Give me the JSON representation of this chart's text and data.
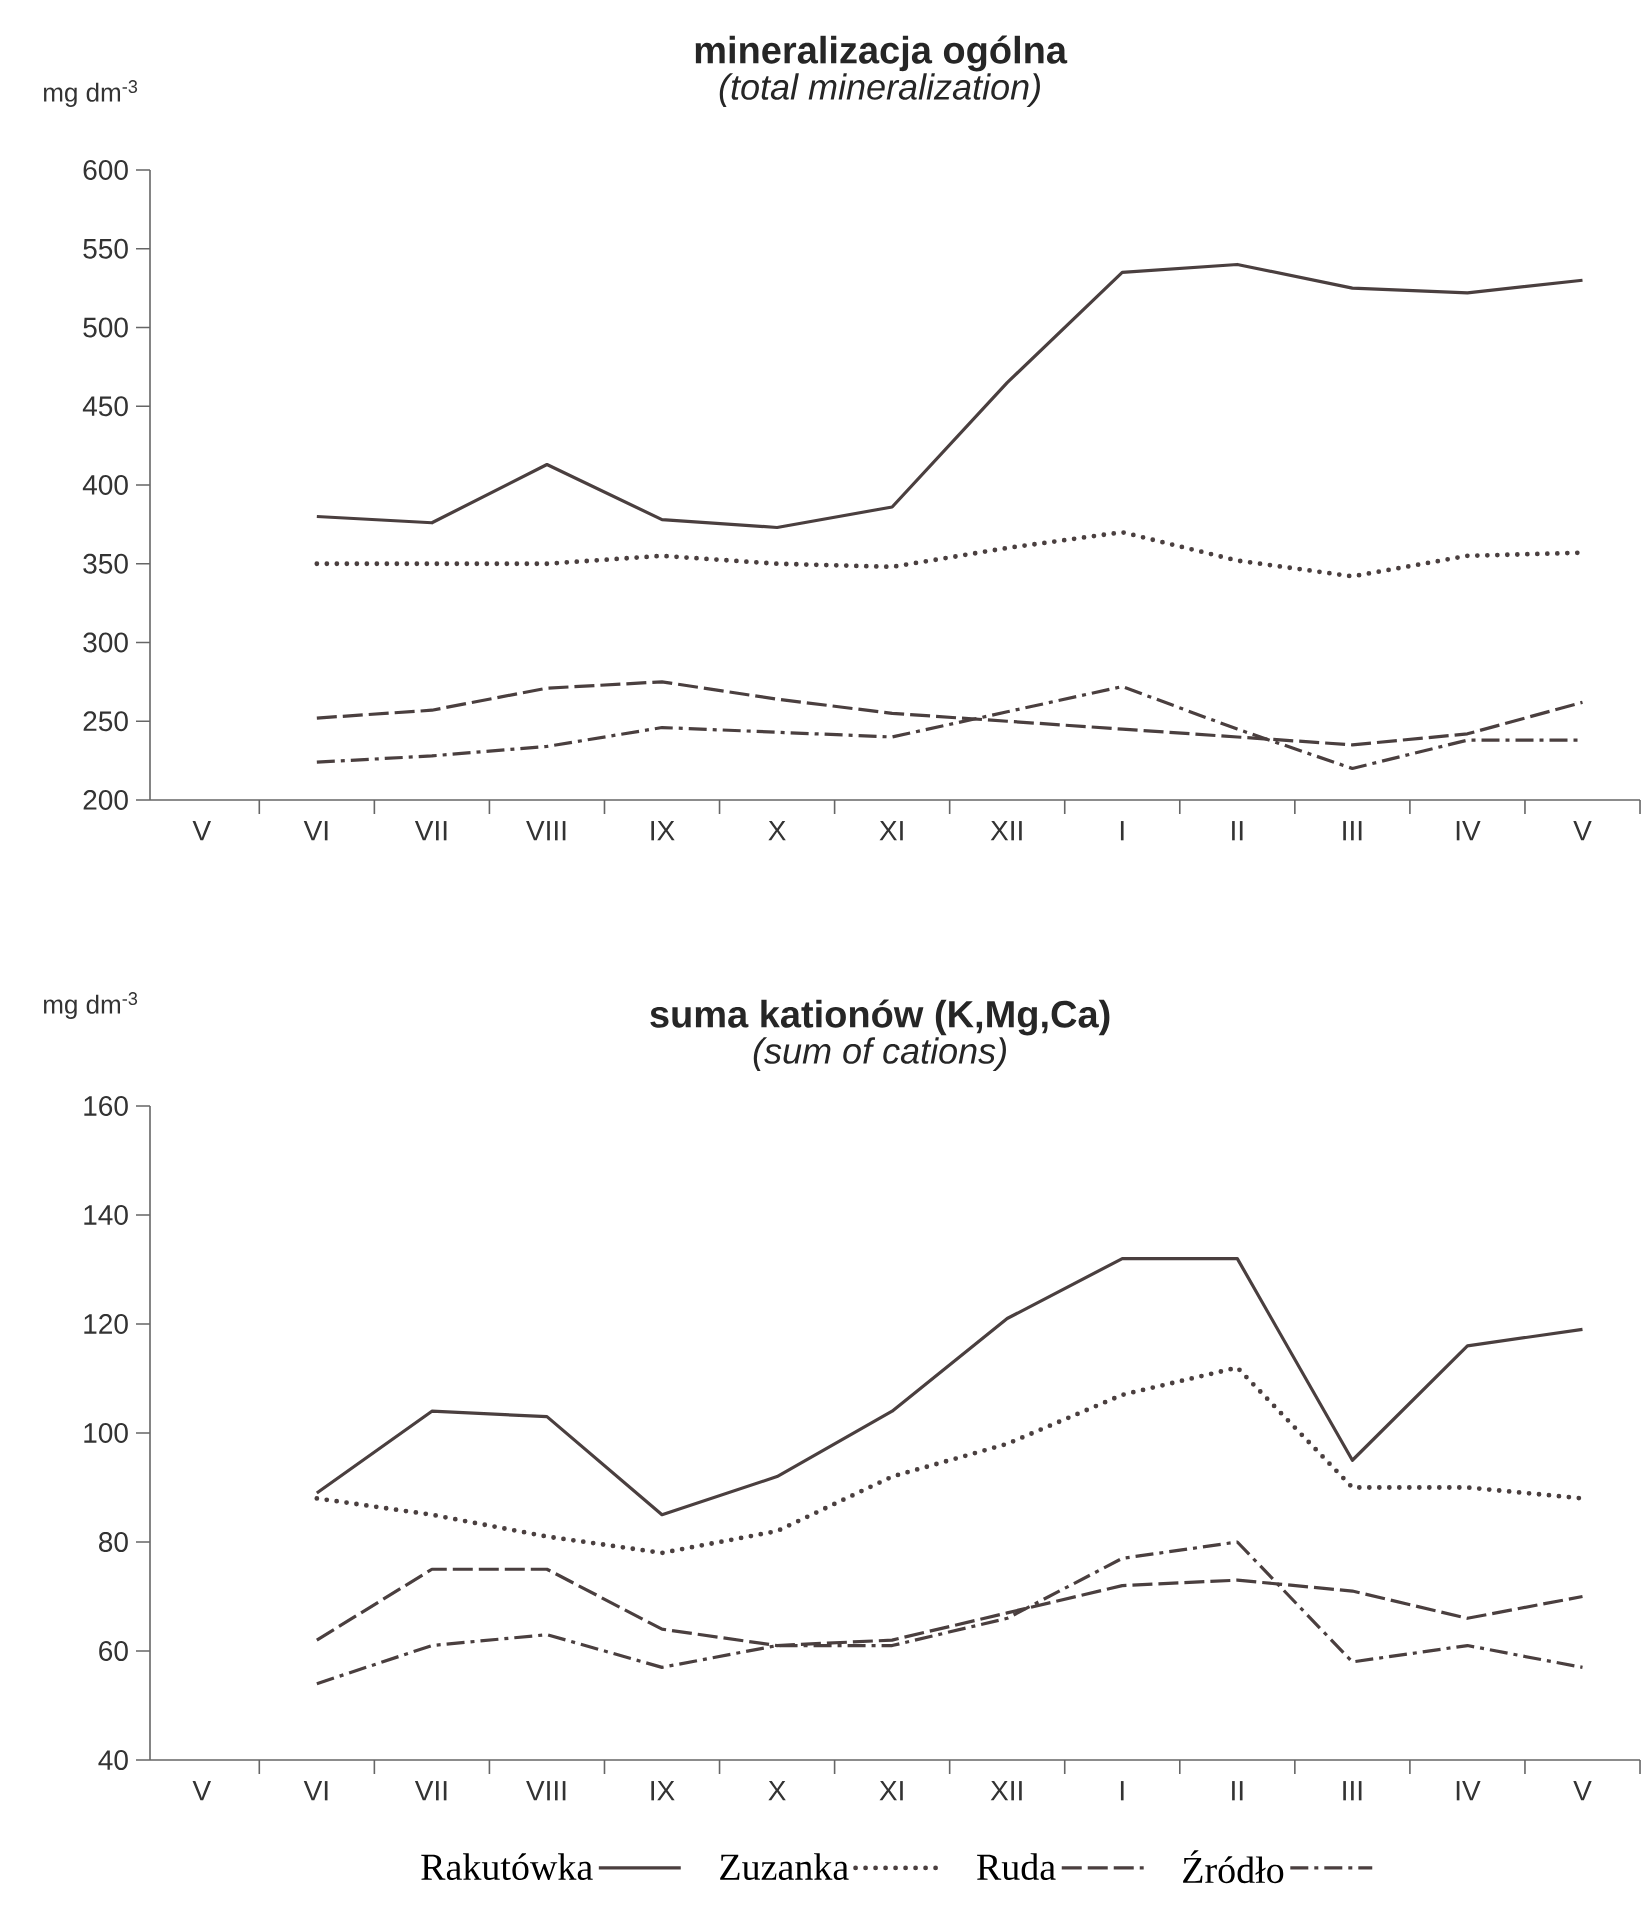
{
  "chart_data": [
    {
      "type": "line",
      "title": "mineralizacja ogólna",
      "subtitle": "(total mineralization)",
      "ylabel": "mg dm$^{-3}$",
      "categories": [
        "V",
        "VI",
        "VII",
        "VIII",
        "IX",
        "X",
        "XI",
        "XII",
        "I",
        "II",
        "III",
        "IV",
        "V"
      ],
      "ylim": [
        200,
        600
      ],
      "yticks": [
        200,
        250,
        300,
        350,
        400,
        450,
        500,
        550,
        600
      ],
      "series": [
        {
          "color": "#4a3f3f",
          "line_style": "solid",
          "values": [
            null,
            380,
            376,
            413,
            378,
            373,
            386,
            465,
            535,
            540,
            525,
            522,
            530
          ]
        },
        {
          "color": "#4a3f3f",
          "line_style": "dotted",
          "values": [
            null,
            350,
            350,
            350,
            355,
            350,
            348,
            360,
            370,
            352,
            342,
            355,
            357
          ]
        },
        {
          "color": "#4a3f3f",
          "line_style": "dashed",
          "values": [
            null,
            252,
            257,
            271,
            275,
            264,
            255,
            250,
            245,
            240,
            235,
            242,
            262
          ]
        },
        {
          "color": "#4a3f3f",
          "line_style": "dashdot",
          "values": [
            null,
            224,
            228,
            234,
            246,
            243,
            240,
            256,
            272,
            245,
            220,
            238,
            238
          ]
        }
      ]
    },
    {
      "type": "line",
      "title": "suma kationów (K,Mg,Ca)",
      "subtitle": "(sum of cations)",
      "ylabel": "mg dm$^{-3}$",
      "categories": [
        "V",
        "VI",
        "VII",
        "VIII",
        "IX",
        "X",
        "XI",
        "XII",
        "I",
        "II",
        "III",
        "IV",
        "V"
      ],
      "ylim": [
        40,
        160
      ],
      "yticks": [
        40,
        60,
        80,
        100,
        120,
        140,
        160
      ],
      "legend": "bottom",
      "series": [
        {
          "name": "Rakutówka",
          "color": "#4a3f3f",
          "line_style": "solid",
          "values": [
            null,
            89,
            104,
            103,
            85,
            92,
            104,
            121,
            132,
            132,
            95,
            116,
            119
          ]
        },
        {
          "name": "Zuzanka",
          "color": "#4a3f3f",
          "line_style": "dotted",
          "values": [
            null,
            88,
            85,
            81,
            78,
            82,
            92,
            98,
            107,
            112,
            90,
            90,
            88
          ]
        },
        {
          "name": "Ruda",
          "color": "#4a3f3f",
          "line_style": "dashed",
          "values": [
            null,
            62,
            75,
            75,
            64,
            61,
            62,
            67,
            72,
            73,
            71,
            66,
            70
          ]
        },
        {
          "name": "Źródło",
          "color": "#4a3f3f",
          "line_style": "dashdot",
          "values": [
            null,
            54,
            61,
            63,
            57,
            61,
            61,
            66,
            77,
            80,
            58,
            61,
            57
          ]
        }
      ]
    }
  ]
}
